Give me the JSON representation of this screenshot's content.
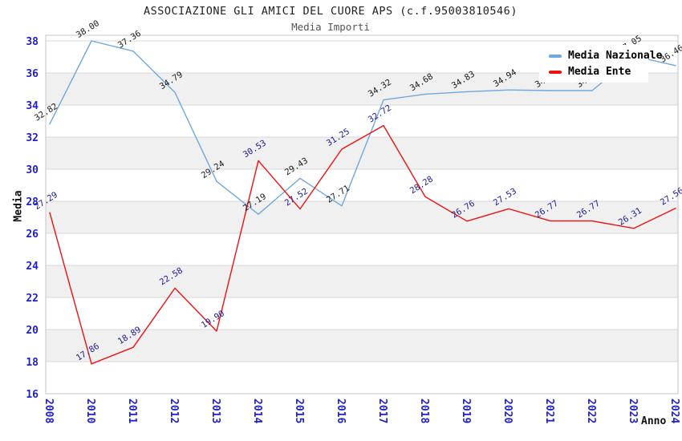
{
  "title": "ASSOCIAZIONE GLI AMICI DEL CUORE APS (c.f.95003810546)",
  "subtitle": "Media Importi",
  "y_axis_title": "Media",
  "x_axis_title": "Anno",
  "legend": {
    "items": [
      {
        "label": "Media Nazionale",
        "color": "#6FA8DC"
      },
      {
        "label": "Media Ente",
        "color": "#EE1111"
      }
    ]
  },
  "colors": {
    "tick_label": "#2121CE",
    "band_gray": "#F0F0F0",
    "gridline": "#D8D8D8",
    "plot_border": "#C6C6C6"
  },
  "chart_data": {
    "type": "line",
    "title": "ASSOCIAZIONE GLI AMICI DEL CUORE APS (c.f.95003810546)",
    "subtitle": "Media Importi",
    "xlabel": "Anno",
    "ylabel": "Media",
    "ylim": [
      16,
      38.35
    ],
    "yticks": [
      16,
      18,
      20,
      22,
      24,
      26,
      28,
      30,
      32,
      34,
      36,
      38
    ],
    "gray_bands": [
      [
        18,
        20
      ],
      [
        22,
        24
      ],
      [
        26,
        28
      ],
      [
        30,
        32
      ],
      [
        34,
        36
      ]
    ],
    "grid": "horizontal",
    "legend_position": "top-right-overlapping-plot",
    "categories": [
      "2008",
      "2010",
      "2011",
      "2012",
      "2013",
      "2014",
      "2015",
      "2016",
      "2017",
      "2018",
      "2019",
      "2020",
      "2021",
      "2022",
      "2023",
      "2024"
    ],
    "series": [
      {
        "name": "Media Nazionale",
        "color": "#6FA8DC",
        "label_color": "#1A1A1A",
        "values": [
          32.82,
          38.0,
          37.36,
          34.79,
          29.24,
          27.19,
          29.43,
          27.71,
          34.32,
          34.68,
          34.83,
          34.94,
          34.9,
          34.9,
          37.05,
          36.46
        ],
        "point_labels": [
          "32.82",
          "38.00",
          "37.36",
          "34.79",
          "29.24",
          "27.19",
          "29.43",
          "27.71",
          "34.32",
          "34.68",
          "34.83",
          "34.94",
          "34.90",
          "34.90",
          "37.05",
          "36.46"
        ]
      },
      {
        "name": "Media Ente",
        "color": "#EE1111",
        "label_color": "#1C1C96",
        "values": [
          27.29,
          17.86,
          18.89,
          22.58,
          19.9,
          30.53,
          27.52,
          31.25,
          32.72,
          28.28,
          26.76,
          27.53,
          26.77,
          26.77,
          26.31,
          27.56
        ],
        "point_labels": [
          "27.29",
          "17.86",
          "18.89",
          "22.58",
          "19.90",
          "30.53",
          "27.52",
          "31.25",
          "32.72",
          "28.28",
          "26.76",
          "27.53",
          "26.77",
          "26.77",
          "26.31",
          "27.56"
        ]
      }
    ]
  }
}
